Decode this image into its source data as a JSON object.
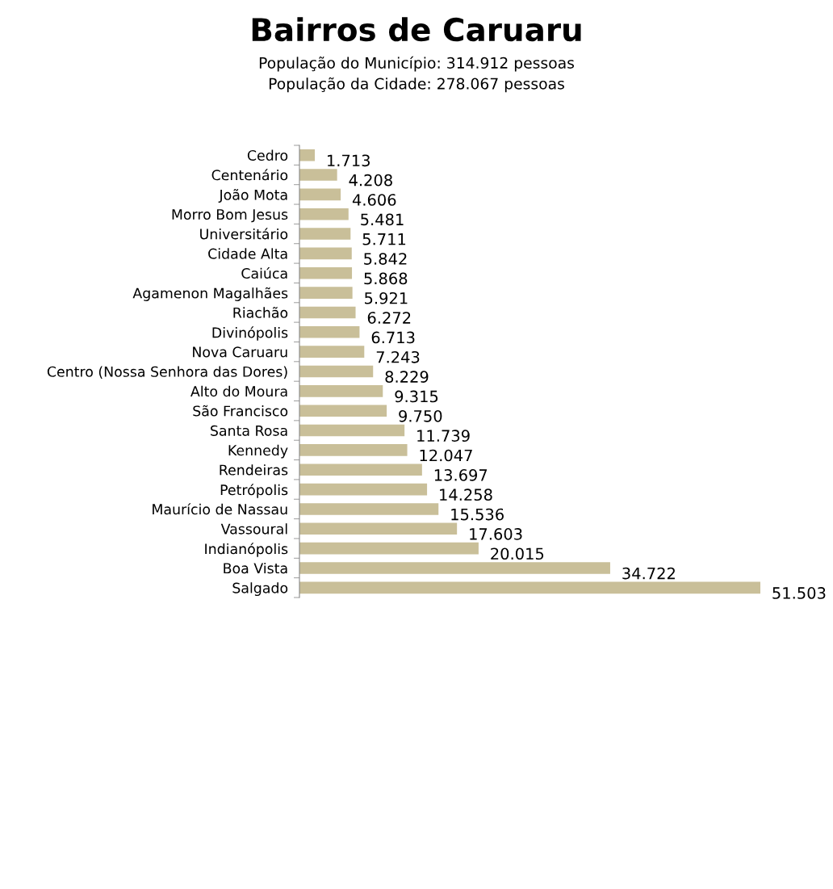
{
  "chart_data": {
    "type": "bar",
    "orientation": "horizontal",
    "title": "Bairros de Caruaru",
    "subtitle": "População do Município: 314.912 pessoas\nPopulação da Cidade: 278.067 pessoas",
    "categories": [
      "Cedro",
      "Centenário",
      "João Mota",
      "Morro Bom Jesus",
      "Universitário",
      "Cidade Alta",
      "Caiúca",
      "Agamenon Magalhães",
      "Riachão",
      "Divinópolis",
      "Nova Caruaru",
      "Centro (Nossa Senhora das Dores)",
      "Alto do Moura",
      "São Francisco",
      "Santa Rosa",
      "Kennedy",
      "Rendeiras",
      "Petrópolis",
      "Maurício de Nassau",
      "Vassoural",
      "Indianópolis",
      "Boa Vista",
      "Salgado"
    ],
    "values": [
      1713,
      4208,
      4606,
      5481,
      5711,
      5842,
      5868,
      5921,
      6272,
      6713,
      7243,
      8229,
      9315,
      9750,
      11739,
      12047,
      13697,
      14258,
      15536,
      17603,
      20015,
      34722,
      51503
    ],
    "value_labels": [
      "1.713",
      "4.208",
      "4.606",
      "5.481",
      "5.711",
      "5.842",
      "5.868",
      "5.921",
      "6.272",
      "6.713",
      "7.243",
      "8.229",
      "9.315",
      "9.750",
      "11.739",
      "12.047",
      "13.697",
      "14.258",
      "15.536",
      "17.603",
      "20.015",
      "34.722",
      "51.503"
    ],
    "color": "#c9bf99",
    "grid": false,
    "legend": false
  }
}
